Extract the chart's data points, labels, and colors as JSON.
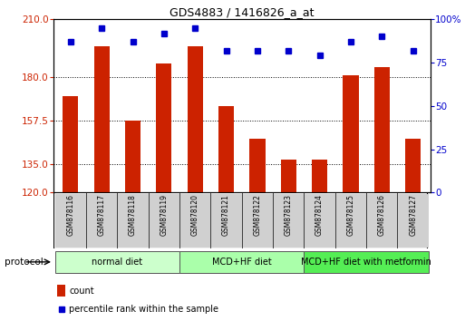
{
  "title": "GDS4883 / 1416826_a_at",
  "samples": [
    "GSM878116",
    "GSM878117",
    "GSM878118",
    "GSM878119",
    "GSM878120",
    "GSM878121",
    "GSM878122",
    "GSM878123",
    "GSM878124",
    "GSM878125",
    "GSM878126",
    "GSM878127"
  ],
  "counts": [
    170,
    196,
    157.5,
    187,
    196,
    165,
    148,
    137,
    137,
    181,
    185,
    148
  ],
  "percentile_ranks": [
    87,
    95,
    87,
    92,
    95,
    82,
    82,
    82,
    79,
    87,
    90,
    82
  ],
  "bar_color": "#cc2200",
  "dot_color": "#0000cc",
  "ylim_left": [
    120,
    210
  ],
  "yticks_left": [
    120,
    135,
    157.5,
    180,
    210
  ],
  "ylim_right": [
    0,
    100
  ],
  "yticks_right": [
    0,
    25,
    50,
    75,
    100
  ],
  "groups": [
    {
      "label": "normal diet",
      "start": 0,
      "end": 4,
      "color": "#ccffcc"
    },
    {
      "label": "MCD+HF diet",
      "start": 4,
      "end": 8,
      "color": "#aaffaa"
    },
    {
      "label": "MCD+HF diet with metformin",
      "start": 8,
      "end": 12,
      "color": "#55ee55"
    }
  ],
  "protocol_label": "protocol",
  "legend_count_label": "count",
  "legend_percentile_label": "percentile rank within the sample",
  "bar_width": 0.5,
  "tick_label_color_left": "#cc2200",
  "tick_label_color_right": "#0000cc",
  "sample_box_color": "#d0d0d0",
  "title_fontsize": 9,
  "axis_fontsize": 7.5,
  "legend_fontsize": 7,
  "sample_fontsize": 5.5,
  "proto_fontsize": 7
}
